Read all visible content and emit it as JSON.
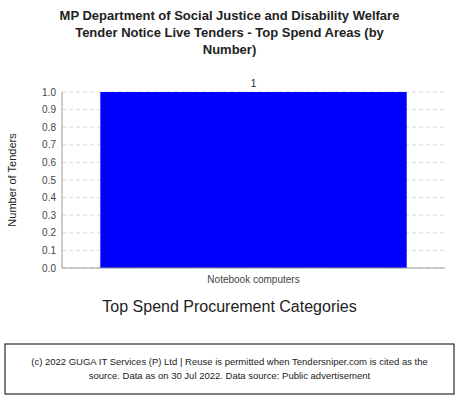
{
  "chart_data": {
    "type": "bar",
    "title": "MP Department of Social Justice and Disability Welfare\nTender Notice Live Tenders - Top Spend Areas (by\nNumber)",
    "categories": [
      "Notebook computers"
    ],
    "values": [
      1
    ],
    "color": "#0000FF",
    "xlabel": "Top Spend Procurement Categories",
    "ylabel": "Number of Tenders",
    "ylim": [
      0,
      1
    ],
    "yticks": [
      {
        "value": 0,
        "label": "0.0"
      },
      0.1,
      0.2,
      0.3,
      0.4,
      0.5,
      0.6,
      0.7,
      0.8,
      0.9,
      {
        "value": 1,
        "label": "1.0"
      }
    ],
    "grid": true,
    "data_labels": true,
    "footer": "(c) 2022 GUGA IT Services (P) Ltd | Reuse is permitted when Tendersniper.com is cited as the\nsource. Data as on 30 Jul 2022. Data source: Public advertisement"
  }
}
